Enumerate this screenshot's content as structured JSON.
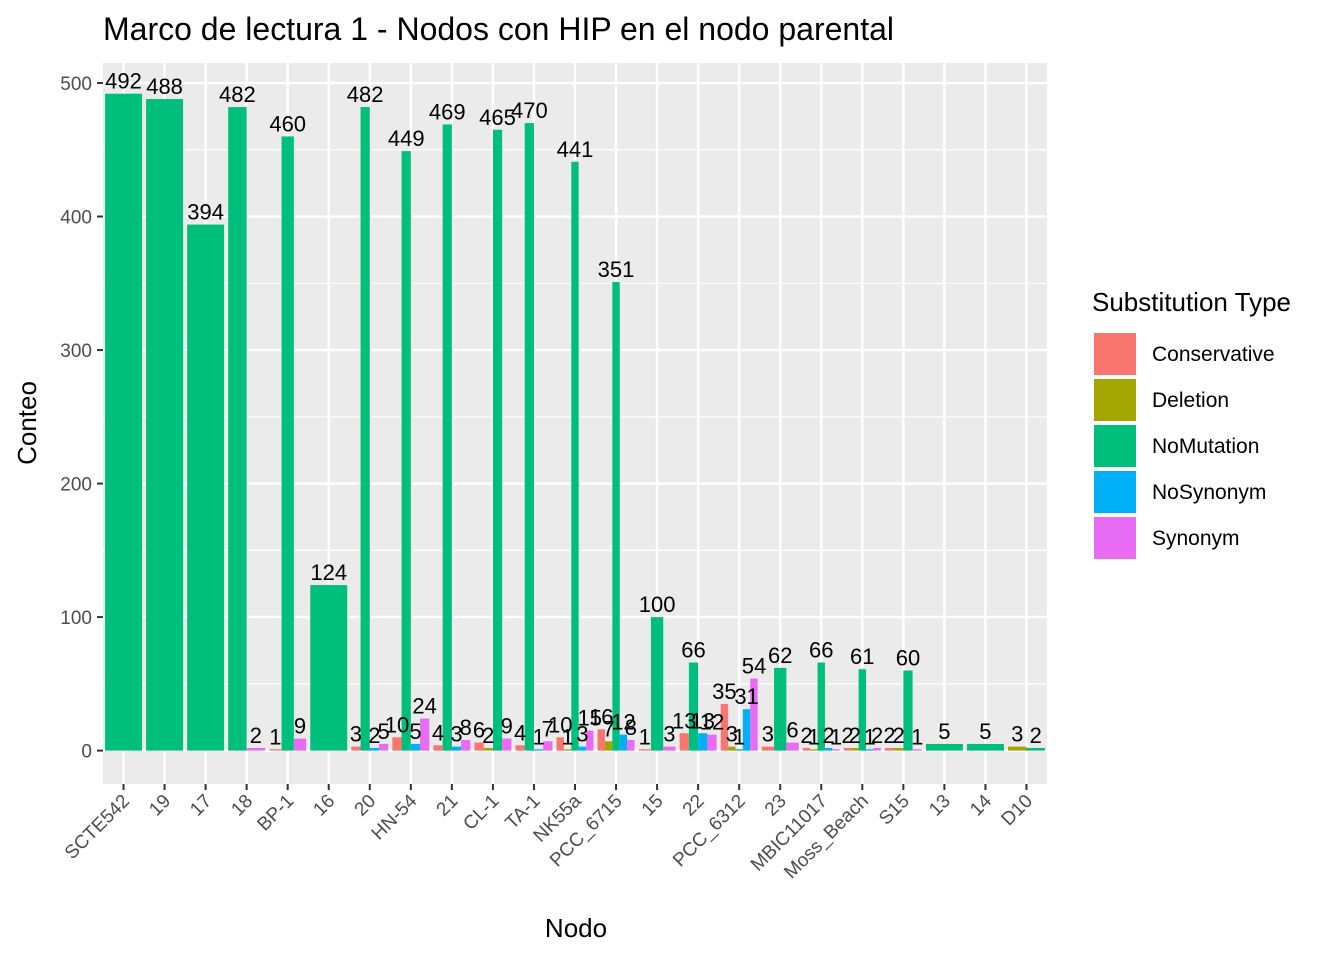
{
  "chart_data": {
    "type": "bar",
    "title": "Marco de lectura 1 - Nodos con HIP en el nodo parental",
    "xlabel": "Nodo",
    "ylabel": "Conteo",
    "ylim": [
      -25,
      515
    ],
    "yticks": [
      0,
      100,
      200,
      300,
      400,
      500
    ],
    "grid": true,
    "legend": {
      "title": "Substitution Type",
      "placement": "right",
      "items": [
        {
          "name": "Conservative",
          "color": "#F8766D"
        },
        {
          "name": "Deletion",
          "color": "#A3A500"
        },
        {
          "name": "NoMutation",
          "color": "#00BF7D"
        },
        {
          "name": "NoSynonym",
          "color": "#00B0F6"
        },
        {
          "name": "Synonym",
          "color": "#E76BF3"
        }
      ]
    },
    "categories": [
      "SCTE542",
      "19",
      "17",
      "18",
      "BP-1",
      "16",
      "20",
      "HN-54",
      "21",
      "CL-1",
      "TA-1",
      "NK55a",
      "PCC_6715",
      "15",
      "22",
      "PCC_6312",
      "23",
      "MBIC11017",
      "Moss_Beach",
      "S15",
      "13",
      "14",
      "D10"
    ],
    "groups": [
      {
        "category": "SCTE542",
        "bars": [
          {
            "type": "NoMutation",
            "value": 492
          }
        ]
      },
      {
        "category": "19",
        "bars": [
          {
            "type": "NoMutation",
            "value": 488
          }
        ]
      },
      {
        "category": "17",
        "bars": [
          {
            "type": "NoMutation",
            "value": 394
          }
        ]
      },
      {
        "category": "18",
        "bars": [
          {
            "type": "NoMutation",
            "value": 482
          },
          {
            "type": "Synonym",
            "value": 2
          }
        ]
      },
      {
        "category": "BP-1",
        "bars": [
          {
            "type": "Conservative",
            "value": 1
          },
          {
            "type": "NoMutation",
            "value": 460
          },
          {
            "type": "Synonym",
            "value": 9
          }
        ]
      },
      {
        "category": "16",
        "bars": [
          {
            "type": "NoMutation",
            "value": 124
          }
        ]
      },
      {
        "category": "20",
        "bars": [
          {
            "type": "Conservative",
            "value": 3
          },
          {
            "type": "NoMutation",
            "value": 482
          },
          {
            "type": "NoSynonym",
            "value": 2
          },
          {
            "type": "Synonym",
            "value": 5
          }
        ]
      },
      {
        "category": "HN-54",
        "bars": [
          {
            "type": "Conservative",
            "value": 10
          },
          {
            "type": "NoMutation",
            "value": 449
          },
          {
            "type": "NoSynonym",
            "value": 5
          },
          {
            "type": "Synonym",
            "value": 24
          }
        ]
      },
      {
        "category": "21",
        "bars": [
          {
            "type": "Conservative",
            "value": 4
          },
          {
            "type": "NoMutation",
            "value": 469
          },
          {
            "type": "NoSynonym",
            "value": 3
          },
          {
            "type": "Synonym",
            "value": 8
          }
        ]
      },
      {
        "category": "CL-1",
        "bars": [
          {
            "type": "Conservative",
            "value": 6
          },
          {
            "type": "Deletion",
            "value": 2
          },
          {
            "type": "NoMutation",
            "value": 465
          },
          {
            "type": "Synonym",
            "value": 9
          }
        ]
      },
      {
        "category": "TA-1",
        "bars": [
          {
            "type": "Conservative",
            "value": 4
          },
          {
            "type": "NoMutation",
            "value": 470
          },
          {
            "type": "NoSynonym",
            "value": 1
          },
          {
            "type": "Synonym",
            "value": 7
          }
        ]
      },
      {
        "category": "NK55a",
        "bars": [
          {
            "type": "Conservative",
            "value": 10
          },
          {
            "type": "Deletion",
            "value": 1
          },
          {
            "type": "NoMutation",
            "value": 441
          },
          {
            "type": "NoSynonym",
            "value": 3
          },
          {
            "type": "Synonym",
            "value": 15
          }
        ]
      },
      {
        "category": "PCC_6715",
        "bars": [
          {
            "type": "Conservative",
            "value": 16
          },
          {
            "type": "Deletion",
            "value": 7
          },
          {
            "type": "NoMutation",
            "value": 351
          },
          {
            "type": "NoSynonym",
            "value": 12
          },
          {
            "type": "Synonym",
            "value": 8
          }
        ]
      },
      {
        "category": "15",
        "bars": [
          {
            "type": "Conservative",
            "value": 1
          },
          {
            "type": "NoMutation",
            "value": 100
          },
          {
            "type": "Synonym",
            "value": 3
          }
        ]
      },
      {
        "category": "22",
        "bars": [
          {
            "type": "Conservative",
            "value": 13
          },
          {
            "type": "NoMutation",
            "value": 66
          },
          {
            "type": "NoSynonym",
            "value": 13
          },
          {
            "type": "Synonym",
            "value": 12
          }
        ]
      },
      {
        "category": "PCC_6312",
        "bars": [
          {
            "type": "Conservative",
            "value": 35
          },
          {
            "type": "Deletion",
            "value": 3
          },
          {
            "type": "NoMutation",
            "value": 1
          },
          {
            "type": "NoSynonym",
            "value": 31
          },
          {
            "type": "Synonym",
            "value": 54
          }
        ]
      },
      {
        "category": "23",
        "bars": [
          {
            "type": "Conservative",
            "value": 3
          },
          {
            "type": "NoMutation",
            "value": 62
          },
          {
            "type": "Synonym",
            "value": 6
          }
        ]
      },
      {
        "category": "MBIC11017",
        "bars": [
          {
            "type": "Conservative",
            "value": 2
          },
          {
            "type": "Deletion",
            "value": 1
          },
          {
            "type": "NoMutation",
            "value": 66
          },
          {
            "type": "NoSynonym",
            "value": 2
          },
          {
            "type": "Synonym",
            "value": 1
          }
        ]
      },
      {
        "category": "Moss_Beach",
        "bars": [
          {
            "type": "Conservative",
            "value": 2
          },
          {
            "type": "Deletion",
            "value": 2
          },
          {
            "type": "NoMutation",
            "value": 61
          },
          {
            "type": "NoSynonym",
            "value": 1
          },
          {
            "type": "Synonym",
            "value": 2
          }
        ]
      },
      {
        "category": "S15",
        "bars": [
          {
            "type": "Conservative",
            "value": 2
          },
          {
            "type": "Deletion",
            "value": 2
          },
          {
            "type": "NoMutation",
            "value": 60
          },
          {
            "type": "Synonym",
            "value": 1
          }
        ]
      },
      {
        "category": "13",
        "bars": [
          {
            "type": "NoMutation",
            "value": 5
          }
        ]
      },
      {
        "category": "14",
        "bars": [
          {
            "type": "NoMutation",
            "value": 5
          }
        ]
      },
      {
        "category": "D10",
        "bars": [
          {
            "type": "Deletion",
            "value": 3
          },
          {
            "type": "NoMutation",
            "value": 2
          }
        ]
      }
    ]
  }
}
